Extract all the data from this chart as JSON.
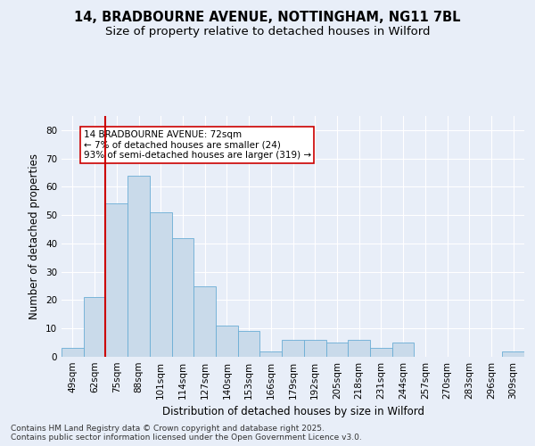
{
  "title1": "14, BRADBOURNE AVENUE, NOTTINGHAM, NG11 7BL",
  "title2": "Size of property relative to detached houses in Wilford",
  "xlabel": "Distribution of detached houses by size in Wilford",
  "ylabel": "Number of detached properties",
  "categories": [
    "49sqm",
    "62sqm",
    "75sqm",
    "88sqm",
    "101sqm",
    "114sqm",
    "127sqm",
    "140sqm",
    "153sqm",
    "166sqm",
    "179sqm",
    "192sqm",
    "205sqm",
    "218sqm",
    "231sqm",
    "244sqm",
    "257sqm",
    "270sqm",
    "283sqm",
    "296sqm",
    "309sqm"
  ],
  "values": [
    3,
    21,
    54,
    64,
    51,
    42,
    25,
    11,
    9,
    2,
    6,
    6,
    5,
    6,
    3,
    5,
    0,
    0,
    0,
    0,
    2
  ],
  "bar_color": "#c9daea",
  "bar_edge_color": "#6aadd5",
  "vline_color": "#cc0000",
  "vline_x": 1.5,
  "annotation_text": "14 BRADBOURNE AVENUE: 72sqm\n← 7% of detached houses are smaller (24)\n93% of semi-detached houses are larger (319) →",
  "annotation_box_facecolor": "#ffffff",
  "annotation_box_edgecolor": "#cc0000",
  "ylim": [
    0,
    85
  ],
  "yticks": [
    0,
    10,
    20,
    30,
    40,
    50,
    60,
    70,
    80
  ],
  "background_color": "#e8eef8",
  "plot_background_color": "#e8eef8",
  "grid_color": "#ffffff",
  "footer_text": "Contains HM Land Registry data © Crown copyright and database right 2025.\nContains public sector information licensed under the Open Government Licence v3.0.",
  "title_fontsize": 10.5,
  "subtitle_fontsize": 9.5,
  "axis_label_fontsize": 8.5,
  "tick_fontsize": 7.5,
  "annotation_fontsize": 7.5,
  "footer_fontsize": 6.5
}
